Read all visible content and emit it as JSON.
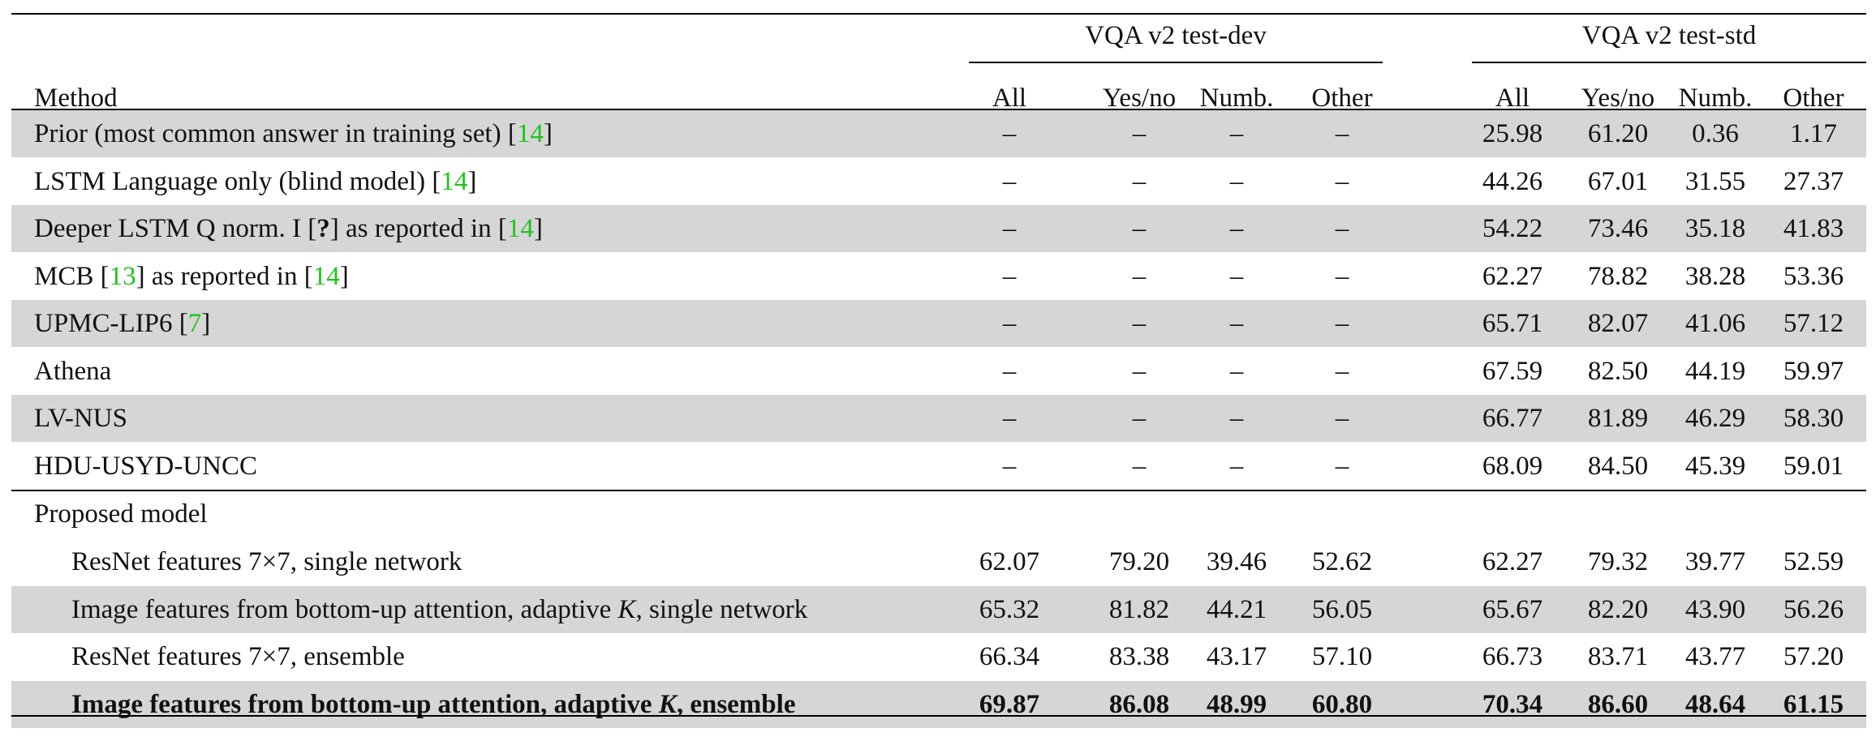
{
  "header": {
    "method_label": "Method",
    "group_dev": "VQA v2 test-dev",
    "group_std": "VQA v2 test-std",
    "columns": [
      "All",
      "Yes/no",
      "Numb.",
      "Other"
    ]
  },
  "baseline_rows": [
    {
      "pre": "Prior (most common answer in training set) [",
      "ref": "14",
      "post": "]",
      "mid": "",
      "ref2": "",
      "post2": "",
      "dev": [
        "–",
        "–",
        "–",
        "–"
      ],
      "std": [
        "25.98",
        "61.20",
        "0.36",
        "1.17"
      ]
    },
    {
      "pre": "LSTM Language only (blind model) [",
      "ref": "14",
      "post": "]",
      "mid": "",
      "ref2": "",
      "post2": "",
      "dev": [
        "–",
        "–",
        "–",
        "–"
      ],
      "std": [
        "44.26",
        "67.01",
        "31.55",
        "27.37"
      ]
    },
    {
      "pre": "Deeper LSTM Q norm. I [",
      "ref": "?",
      "post": "] as reported in [",
      "mid": "",
      "ref2": "14",
      "post2": "]",
      "dev": [
        "–",
        "–",
        "–",
        "–"
      ],
      "std": [
        "54.22",
        "73.46",
        "35.18",
        "41.83"
      ]
    },
    {
      "pre": "MCB [",
      "ref": "13",
      "post": "] as reported in [",
      "mid": "",
      "ref2": "14",
      "post2": "]",
      "dev": [
        "–",
        "–",
        "–",
        "–"
      ],
      "std": [
        "62.27",
        "78.82",
        "38.28",
        "53.36"
      ]
    },
    {
      "pre": "UPMC-LIP6 [",
      "ref": "7",
      "post": "]",
      "mid": "",
      "ref2": "",
      "post2": "",
      "dev": [
        "–",
        "–",
        "–",
        "–"
      ],
      "std": [
        "65.71",
        "82.07",
        "41.06",
        "57.12"
      ]
    },
    {
      "pre": "Athena",
      "ref": "",
      "post": "",
      "mid": "",
      "ref2": "",
      "post2": "",
      "dev": [
        "–",
        "–",
        "–",
        "–"
      ],
      "std": [
        "67.59",
        "82.50",
        "44.19",
        "59.97"
      ]
    },
    {
      "pre": "LV-NUS",
      "ref": "",
      "post": "",
      "mid": "",
      "ref2": "",
      "post2": "",
      "dev": [
        "–",
        "–",
        "–",
        "–"
      ],
      "std": [
        "66.77",
        "81.89",
        "46.29",
        "58.30"
      ]
    },
    {
      "pre": "HDU-USYD-UNCC",
      "ref": "",
      "post": "",
      "mid": "",
      "ref2": "",
      "post2": "",
      "dev": [
        "–",
        "–",
        "–",
        "–"
      ],
      "std": [
        "68.09",
        "84.50",
        "45.39",
        "59.01"
      ]
    }
  ],
  "proposed_label": "Proposed model",
  "proposed_rows": [
    {
      "text": "ResNet features 7×7, single network",
      "k": "",
      "tail": "",
      "dev": [
        "62.07",
        "79.20",
        "39.46",
        "52.62"
      ],
      "std": [
        "62.27",
        "79.32",
        "39.77",
        "52.59"
      ]
    },
    {
      "text": "Image features from bottom-up attention, adaptive ",
      "k": "K",
      "tail": ", single network",
      "dev": [
        "65.32",
        "81.82",
        "44.21",
        "56.05"
      ],
      "std": [
        "65.67",
        "82.20",
        "43.90",
        "56.26"
      ]
    },
    {
      "text": "ResNet features 7×7, ensemble",
      "k": "",
      "tail": "",
      "dev": [
        "66.34",
        "83.38",
        "43.17",
        "57.10"
      ],
      "std": [
        "66.73",
        "83.71",
        "43.77",
        "57.20"
      ]
    },
    {
      "text": "Image features from bottom-up attention, adaptive ",
      "k": "K",
      "tail": ", ensemble",
      "dev": [
        "69.87",
        "86.08",
        "48.99",
        "60.80"
      ],
      "std": [
        "70.34",
        "86.60",
        "48.64",
        "61.15"
      ]
    }
  ]
}
